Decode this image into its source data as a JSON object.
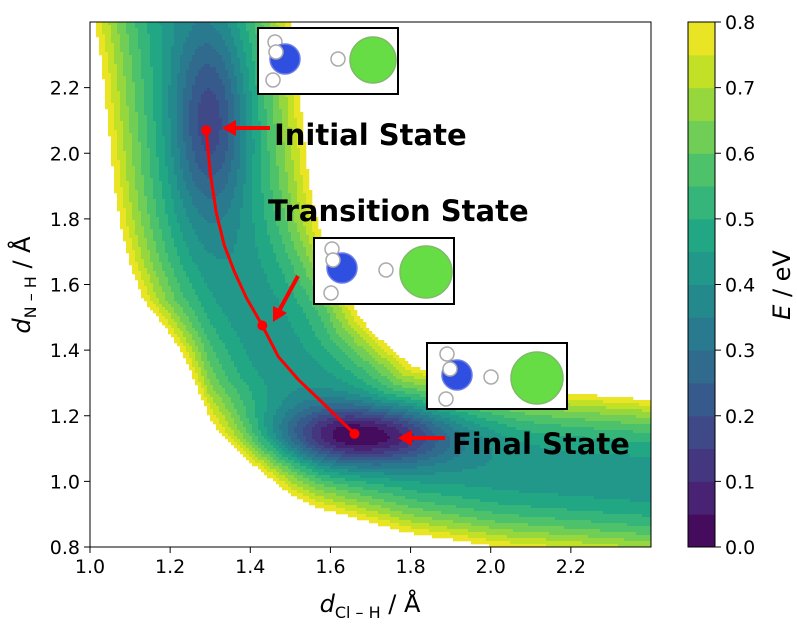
{
  "chart_data": {
    "type": "heatmap",
    "title": "",
    "xlabel": {
      "var": "d",
      "sub": "Cl – H",
      "unit": " / Å"
    },
    "ylabel": {
      "var": "d",
      "sub": "N – H",
      "unit": " / Å"
    },
    "xlim": [
      1.0,
      2.4
    ],
    "ylim": [
      0.8,
      2.4
    ],
    "xticks": [
      "1.0",
      "1.2",
      "1.4",
      "1.6",
      "1.8",
      "2.0",
      "2.2"
    ],
    "yticks": [
      "0.8",
      "1.0",
      "1.2",
      "1.4",
      "1.6",
      "1.8",
      "2.0",
      "2.2"
    ],
    "colorbar": {
      "label": "E",
      "unit": " / eV",
      "range": [
        0.0,
        0.8
      ],
      "ticks": [
        "0.0",
        "0.1",
        "0.2",
        "0.3",
        "0.4",
        "0.5",
        "0.6",
        "0.7",
        "0.8"
      ],
      "levels": 16
    },
    "minima": [
      {
        "x": 1.3,
        "y": 2.1,
        "depth": 0.2
      },
      {
        "x": 1.67,
        "y": 1.14,
        "depth": 0.0
      }
    ],
    "path": [
      [
        1.29,
        2.07
      ],
      [
        1.3,
        1.94
      ],
      [
        1.315,
        1.82
      ],
      [
        1.335,
        1.72
      ],
      [
        1.36,
        1.64
      ],
      [
        1.39,
        1.56
      ],
      [
        1.43,
        1.475
      ],
      [
        1.47,
        1.38
      ],
      [
        1.52,
        1.31
      ],
      [
        1.58,
        1.24
      ],
      [
        1.63,
        1.18
      ],
      [
        1.66,
        1.145
      ]
    ],
    "states": [
      {
        "name": "Initial State",
        "x": 1.29,
        "y": 2.07
      },
      {
        "name": "Transition State",
        "x": 1.43,
        "y": 1.475
      },
      {
        "name": "Final State",
        "x": 1.66,
        "y": 1.145
      }
    ]
  },
  "colors": {
    "path": "#ff0000",
    "nitrogen": "#2f4fe0",
    "hydrogen": "#ffffff",
    "chlorine": "#66dd44",
    "viridis": [
      "#440154",
      "#482475",
      "#414487",
      "#355f8d",
      "#2a788e",
      "#21918c",
      "#22a884",
      "#44bf70",
      "#7ad151",
      "#bddf26",
      "#fde725"
    ]
  }
}
